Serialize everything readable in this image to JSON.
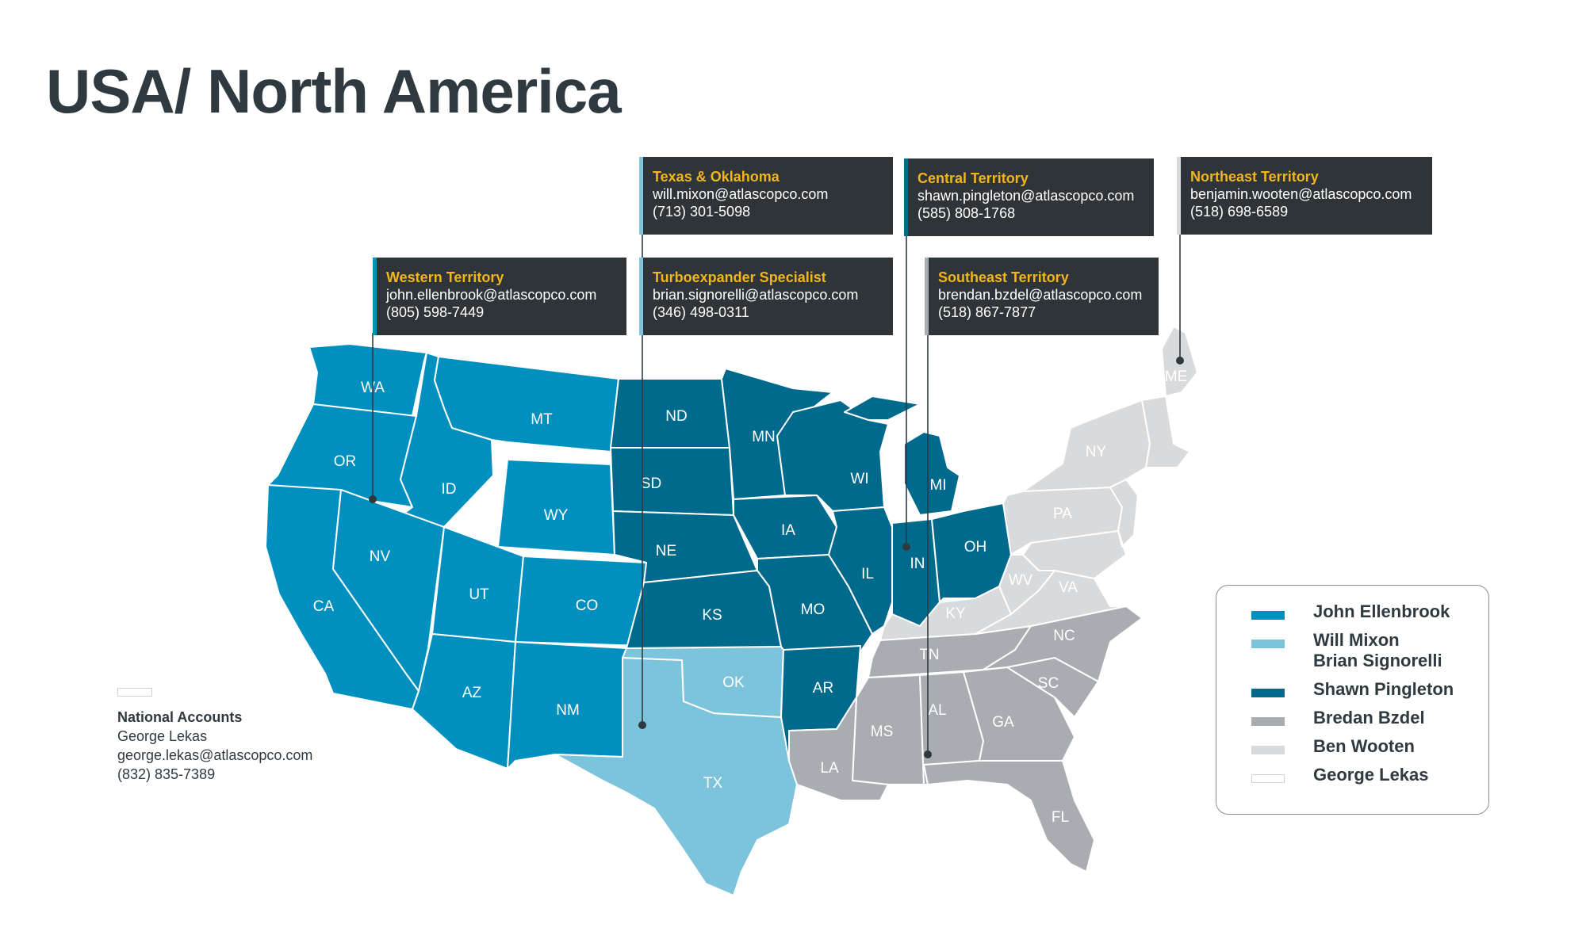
{
  "title": "USA/ North America",
  "colors": {
    "john": "#0090bf",
    "will": "#7cc4dc",
    "shawn": "#006a8c",
    "bredan": "#a9acb0",
    "ben": "#d8dadc",
    "george": "#ffffff"
  },
  "states": [
    {
      "abbr": "WA",
      "region": "john"
    },
    {
      "abbr": "OR",
      "region": "john"
    },
    {
      "abbr": "CA",
      "region": "john"
    },
    {
      "abbr": "ID",
      "region": "john"
    },
    {
      "abbr": "NV",
      "region": "john"
    },
    {
      "abbr": "MT",
      "region": "john"
    },
    {
      "abbr": "WY",
      "region": "john"
    },
    {
      "abbr": "UT",
      "region": "john"
    },
    {
      "abbr": "AZ",
      "region": "john"
    },
    {
      "abbr": "CO",
      "region": "john"
    },
    {
      "abbr": "NM",
      "region": "john"
    },
    {
      "abbr": "TX",
      "region": "will"
    },
    {
      "abbr": "OK",
      "region": "will"
    },
    {
      "abbr": "ND",
      "region": "shawn"
    },
    {
      "abbr": "SD",
      "region": "shawn"
    },
    {
      "abbr": "NE",
      "region": "shawn"
    },
    {
      "abbr": "KS",
      "region": "shawn"
    },
    {
      "abbr": "MN",
      "region": "shawn"
    },
    {
      "abbr": "IA",
      "region": "shawn"
    },
    {
      "abbr": "MO",
      "region": "shawn"
    },
    {
      "abbr": "AR",
      "region": "shawn"
    },
    {
      "abbr": "WI",
      "region": "shawn"
    },
    {
      "abbr": "IL",
      "region": "shawn"
    },
    {
      "abbr": "MI",
      "region": "shawn"
    },
    {
      "abbr": "IN",
      "region": "shawn"
    },
    {
      "abbr": "OH",
      "region": "shawn"
    },
    {
      "abbr": "LA",
      "region": "bredan"
    },
    {
      "abbr": "MS",
      "region": "bredan"
    },
    {
      "abbr": "AL",
      "region": "bredan"
    },
    {
      "abbr": "TN",
      "region": "bredan"
    },
    {
      "abbr": "GA",
      "region": "bredan"
    },
    {
      "abbr": "FL",
      "region": "bredan"
    },
    {
      "abbr": "SC",
      "region": "bredan"
    },
    {
      "abbr": "NC",
      "region": "bredan"
    },
    {
      "abbr": "KY",
      "region": "ben"
    },
    {
      "abbr": "WV",
      "region": "ben"
    },
    {
      "abbr": "VA",
      "region": "ben"
    },
    {
      "abbr": "PA",
      "region": "ben"
    },
    {
      "abbr": "NY",
      "region": "ben"
    },
    {
      "abbr": "ME",
      "region": "ben"
    }
  ],
  "contacts": [
    {
      "id": "western",
      "title": "Western Territory",
      "email": "john.ellenbrook@atlascopco.com",
      "phone": "(805) 598-7449",
      "region": "john"
    },
    {
      "id": "texas",
      "title": "Texas & Oklahoma",
      "email": "will.mixon@atlascopco.com",
      "phone": "(713) 301-5098",
      "region": "will"
    },
    {
      "id": "turbo",
      "title": "Turboexpander Specialist",
      "email": "brian.signorelli@atlascopco.com",
      "phone": "(346) 498-0311",
      "region": "will"
    },
    {
      "id": "central",
      "title": "Central Territory",
      "email": "shawn.pingleton@atlascopco.com",
      "phone": "(585) 808-1768",
      "region": "shawn"
    },
    {
      "id": "southeast",
      "title": "Southeast Territory",
      "email": "brendan.bzdel@atlascopco.com",
      "phone": "(518) 867-7877",
      "region": "bredan"
    },
    {
      "id": "northeast",
      "title": "Northeast Territory",
      "email": "benjamin.wooten@atlascopco.com",
      "phone": "(518) 698-6589",
      "region": "ben"
    }
  ],
  "national": {
    "title": "National Accounts",
    "name": "George Lekas",
    "email": "george.lekas@atlascopco.com",
    "phone": "(832) 835-7389"
  },
  "legend": [
    {
      "label": "John Ellenbrook",
      "region": "john"
    },
    {
      "label": "Will Mixon\nBrian Signorelli",
      "region": "will"
    },
    {
      "label": "Shawn Pingleton",
      "region": "shawn"
    },
    {
      "label": "Bredan Bzdel",
      "region": "bredan"
    },
    {
      "label": "Ben Wooten",
      "region": "ben"
    },
    {
      "label": "George Lekas",
      "region": "george"
    }
  ]
}
